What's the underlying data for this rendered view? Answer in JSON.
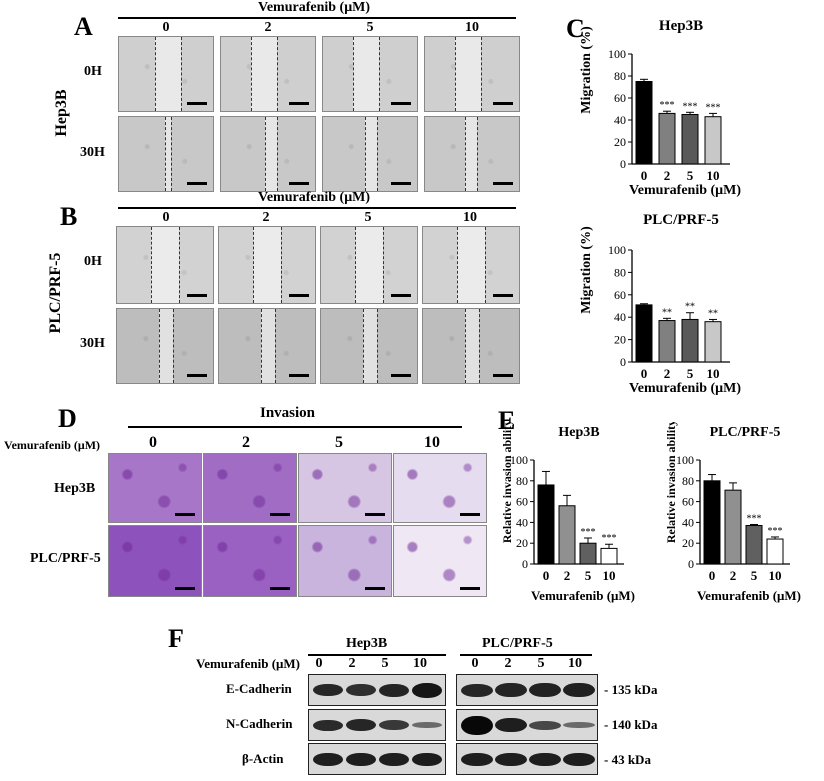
{
  "panels": {
    "A": "A",
    "B": "B",
    "C": "C",
    "D": "D",
    "E": "E",
    "F": "F"
  },
  "common": {
    "treatment_label": "Vemurafenib (μM)",
    "doses": [
      "0",
      "2",
      "5",
      "10"
    ],
    "time_labels": [
      "0H",
      "30H"
    ]
  },
  "panelA": {
    "cell_line": "Hep3B"
  },
  "panelB": {
    "cell_line": "PLC/PRF-5"
  },
  "panelD": {
    "title": "Invasion",
    "rows": [
      "Hep3B",
      "PLC/PRF-5"
    ]
  },
  "panelF": {
    "groups": [
      "Hep3B",
      "PLC/PRF-5"
    ],
    "rows": [
      {
        "label": "E-Cadherin",
        "kda": "- 135 kDa"
      },
      {
        "label": "N-Cadherin",
        "kda": "- 140 kDa"
      },
      {
        "label": "β-Actin",
        "kda": "- 43 kDa"
      }
    ]
  },
  "chart_data": [
    {
      "type": "bar",
      "title": "Hep3B",
      "xlabel": "Vemurafenib (μM)",
      "ylabel": "Migration (%)",
      "categories": [
        "0",
        "2",
        "5",
        "10"
      ],
      "values": [
        75,
        46,
        45,
        43
      ],
      "errors": [
        2,
        2,
        2,
        3
      ],
      "annotations": [
        "",
        "***",
        "***",
        "***"
      ],
      "fills": [
        "#000000",
        "#808080",
        "#595959",
        "#c8c8c8"
      ],
      "ylim": [
        0,
        100
      ],
      "yticks": [
        "0",
        "20",
        "40",
        "60",
        "80",
        "100"
      ]
    },
    {
      "type": "bar",
      "title": "PLC/PRF-5",
      "xlabel": "Vemurafenib (μM)",
      "ylabel": "Migration (%)",
      "categories": [
        "0",
        "2",
        "5",
        "10"
      ],
      "values": [
        51,
        37,
        38,
        36
      ],
      "errors": [
        1,
        2,
        6,
        2
      ],
      "annotations": [
        "",
        "**",
        "**",
        "**"
      ],
      "fills": [
        "#000000",
        "#808080",
        "#595959",
        "#c8c8c8"
      ],
      "ylim": [
        0,
        100
      ],
      "yticks": [
        "0",
        "20",
        "40",
        "60",
        "80",
        "100"
      ]
    },
    {
      "type": "bar",
      "title": "Hep3B",
      "xlabel": "Vemurafenib (μM)",
      "ylabel": "Relative invasion ability (%)",
      "categories": [
        "0",
        "2",
        "5",
        "10"
      ],
      "values": [
        76,
        56,
        20,
        15
      ],
      "errors": [
        13,
        10,
        5,
        4
      ],
      "annotations": [
        "",
        "",
        "***",
        "***"
      ],
      "fills": [
        "#000000",
        "#909090",
        "#606060",
        "#ffffff"
      ],
      "ylim": [
        0,
        100
      ],
      "yticks": [
        "0",
        "20",
        "40",
        "60",
        "80",
        "100"
      ]
    },
    {
      "type": "bar",
      "title": "PLC/PRF-5",
      "xlabel": "Vemurafenib (μM)",
      "ylabel": "Relative invasion ability (%)",
      "categories": [
        "0",
        "2",
        "5",
        "10"
      ],
      "values": [
        80,
        71,
        37,
        24
      ],
      "errors": [
        6,
        7,
        1,
        2
      ],
      "annotations": [
        "",
        "",
        "***",
        "***"
      ],
      "fills": [
        "#000000",
        "#909090",
        "#606060",
        "#ffffff"
      ],
      "ylim": [
        0,
        100
      ],
      "yticks": [
        "0",
        "20",
        "40",
        "60",
        "80",
        "100"
      ]
    }
  ]
}
